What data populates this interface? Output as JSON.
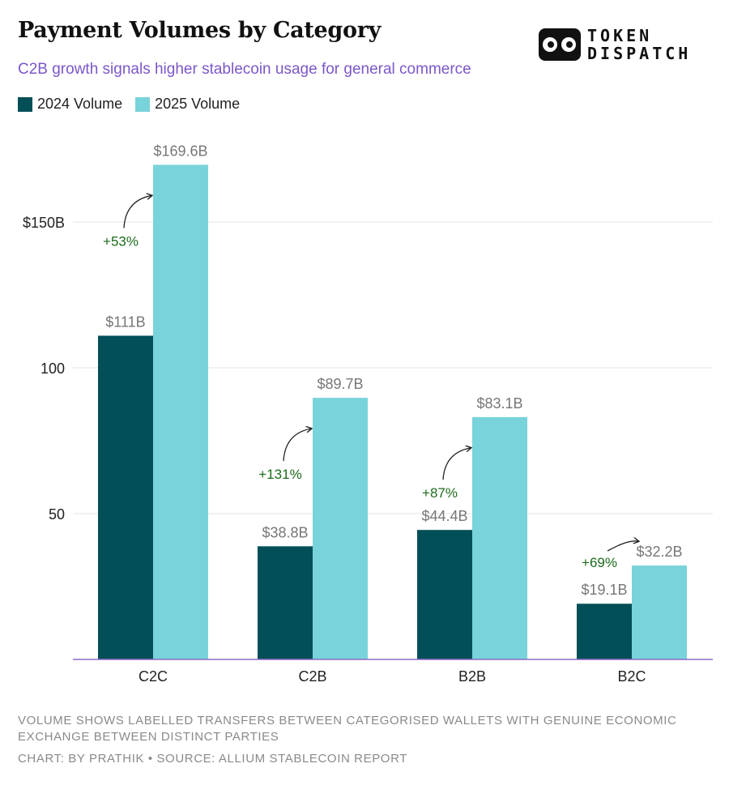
{
  "header": {
    "title": "Payment Volumes by Category",
    "subtitle": "C2B growth signals higher stablecoin usage for general commerce"
  },
  "logo": {
    "line1": "TOKEN",
    "line2": "DISPATCH"
  },
  "colors": {
    "series_2024": "#034f57",
    "series_2025": "#79d3da",
    "growth": "#1c6b1c",
    "subtitle": "#7b57c9",
    "axis": "#8f6ac9",
    "grid": "#e3e3e3",
    "value_label": "#777777"
  },
  "chart_data": {
    "type": "bar",
    "categories": [
      "C2C",
      "C2B",
      "B2B",
      "B2C"
    ],
    "series": [
      {
        "name": "2024 Volume",
        "values": [
          111,
          38.8,
          44.4,
          19.1
        ],
        "labels": [
          "$111B",
          "$38.8B",
          "$44.4B",
          "$19.1B"
        ]
      },
      {
        "name": "2025 Volume",
        "values": [
          169.6,
          89.7,
          83.1,
          32.2
        ],
        "labels": [
          "$169.6B",
          "$89.7B",
          "$83.1B",
          "$32.2B"
        ]
      }
    ],
    "growth_labels": [
      "+53%",
      "+131%",
      "+87%",
      "+69%"
    ],
    "yticks": [
      {
        "value": 50,
        "label": "50"
      },
      {
        "value": 100,
        "label": "100"
      },
      {
        "value": 150,
        "label": "$150B"
      }
    ],
    "ylim": [
      0,
      180
    ],
    "grid": true,
    "legend_position": "top-left"
  },
  "footer": {
    "note": "VOLUME SHOWS LABELLED TRANSFERS BETWEEN CATEGORISED WALLETS WITH GENUINE ECONOMIC EXCHANGE BETWEEN DISTINCT PARTIES",
    "credit": "CHART: BY PRATHIK • SOURCE: ALLIUM STABLECOIN REPORT"
  }
}
